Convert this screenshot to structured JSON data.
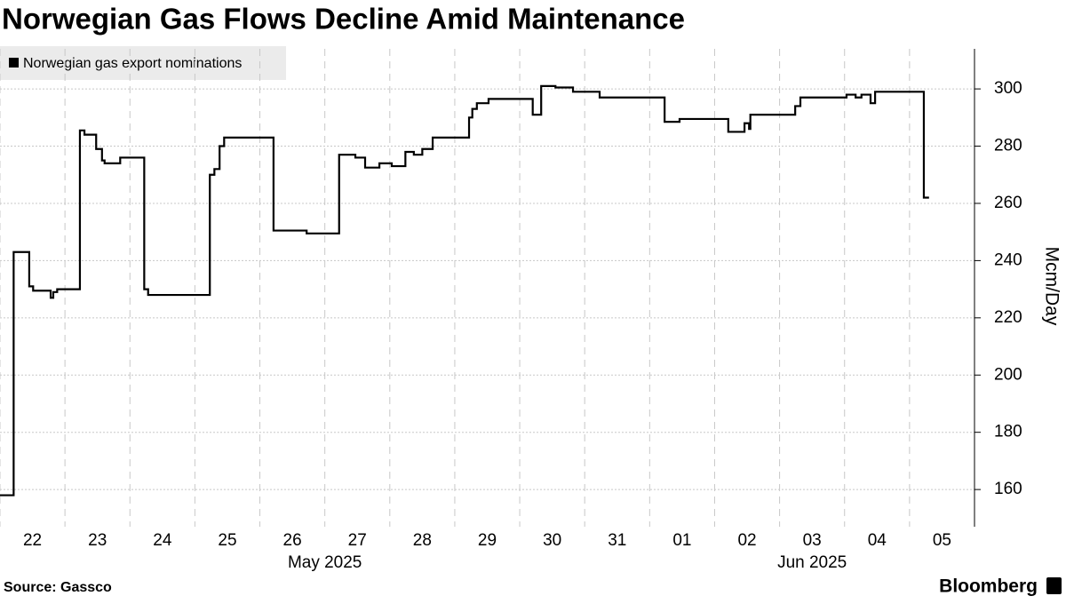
{
  "chart_data": {
    "type": "step",
    "title": "Norwegian Gas Flows Decline Amid Maintenance",
    "y_label": "Mcm/Day",
    "source": "Source: Gassco",
    "brand": "Bloomberg",
    "series": [
      {
        "name": "Norwegian gas export nominations",
        "color": "#000000",
        "x": [
          0,
          0.21,
          0.45,
          0.51,
          0.78,
          0.82,
          0.88,
          1.23,
          1.3,
          1.48,
          1.57,
          1.61,
          1.85,
          2.22,
          2.28,
          3.23,
          3.3,
          3.38,
          3.45,
          4.21,
          4.72,
          5.22,
          5.47,
          5.62,
          5.84,
          6.03,
          6.24,
          6.37,
          6.5,
          6.66,
          7.22,
          7.27,
          7.34,
          7.52,
          8.2,
          8.33,
          8.55,
          8.82,
          9.23,
          10.23,
          10.46,
          11.21,
          11.46,
          11.53,
          11.55,
          12.24,
          12.32,
          13.03,
          13.17,
          13.26,
          13.4,
          13.47,
          14.22,
          14.3
        ],
        "values": [
          158,
          243,
          231,
          229.5,
          227,
          229,
          230,
          285.5,
          284,
          279,
          275,
          274,
          276,
          230,
          228,
          270,
          272,
          280,
          283,
          250.5,
          249.5,
          277,
          276,
          272.5,
          274,
          273,
          278,
          277,
          279,
          283,
          290,
          293,
          295,
          296.5,
          291,
          301,
          300.5,
          299,
          297,
          288.5,
          289.5,
          285,
          288,
          286,
          291,
          294,
          297,
          298,
          297,
          298,
          295,
          299,
          262,
          262
        ]
      }
    ],
    "xlim": [
      0,
      15
    ],
    "xticks": [
      {
        "value": 0.5,
        "label": "22"
      },
      {
        "value": 1.5,
        "label": "23"
      },
      {
        "value": 2.5,
        "label": "24"
      },
      {
        "value": 3.5,
        "label": "25"
      },
      {
        "value": 4.5,
        "label": "26"
      },
      {
        "value": 5.5,
        "label": "27"
      },
      {
        "value": 6.5,
        "label": "28"
      },
      {
        "value": 7.5,
        "label": "29"
      },
      {
        "value": 8.5,
        "label": "30"
      },
      {
        "value": 9.5,
        "label": "31"
      },
      {
        "value": 10.5,
        "label": "01"
      },
      {
        "value": 11.5,
        "label": "02"
      },
      {
        "value": 12.5,
        "label": "03"
      },
      {
        "value": 13.5,
        "label": "04"
      },
      {
        "value": 14.5,
        "label": "05"
      }
    ],
    "x_group_labels": [
      {
        "value": 5,
        "label": "May 2025"
      },
      {
        "value": 12.5,
        "label": "Jun 2025"
      }
    ],
    "ylim": [
      147,
      314
    ],
    "yticks": [
      160,
      180,
      200,
      220,
      240,
      260,
      280,
      300
    ],
    "grid": true
  }
}
